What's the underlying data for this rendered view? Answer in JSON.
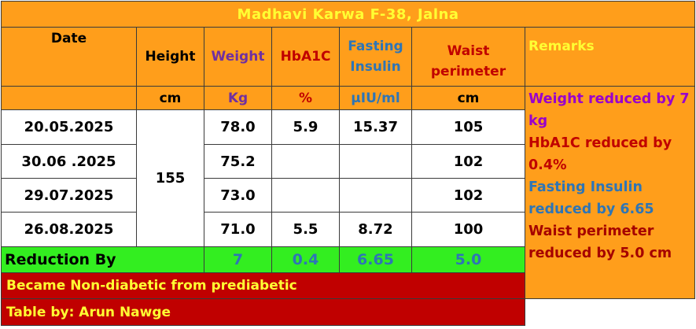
{
  "title": "Madhavi Karwa  F-38, Jalna",
  "headers": {
    "date": "Date",
    "height": "Height",
    "weight": "Weight",
    "hba1c": "HbA1C",
    "fasting_insulin": "Fasting Insulin",
    "waist": "Waist perimeter",
    "remarks": "Remarks"
  },
  "units": {
    "height": "cm",
    "weight": "Kg",
    "hba1c": "%",
    "fasting_insulin": "μIU/ml",
    "waist": "cm"
  },
  "height_value": "155",
  "rows": [
    {
      "date": "20.05.2025",
      "weight": "78.0",
      "hba1c": "5.9",
      "insulin": "15.37",
      "waist": "105"
    },
    {
      "date": "30.06 .2025",
      "weight": "75.2",
      "hba1c": "",
      "insulin": "",
      "waist": "102"
    },
    {
      "date": "29.07.2025",
      "weight": "73.0",
      "hba1c": "",
      "insulin": "",
      "waist": "102"
    },
    {
      "date": "26.08.2025",
      "weight": "71.0",
      "hba1c": "5.5",
      "insulin": "8.72",
      "waist": "100"
    }
  ],
  "reduction": {
    "label": "Reduction By",
    "weight": "7",
    "hba1c": "0.4",
    "insulin": "6.65",
    "waist": "5.0"
  },
  "remarks": [
    "Weight reduced by 7 kg",
    "HbA1C reduced by 0.4%",
    "Fasting Insulin reduced by 6.65",
    "Waist perimeter reduced by 5.0 cm"
  ],
  "footer": {
    "status": "Became Non-diabetic from prediabetic",
    "credit": "Table by: Arun Nawge"
  },
  "colors": {
    "background": "#ff9e1b",
    "title_text": "#ffff33",
    "reduction_row": "#33ee20",
    "footer_rows": "#c00000"
  }
}
